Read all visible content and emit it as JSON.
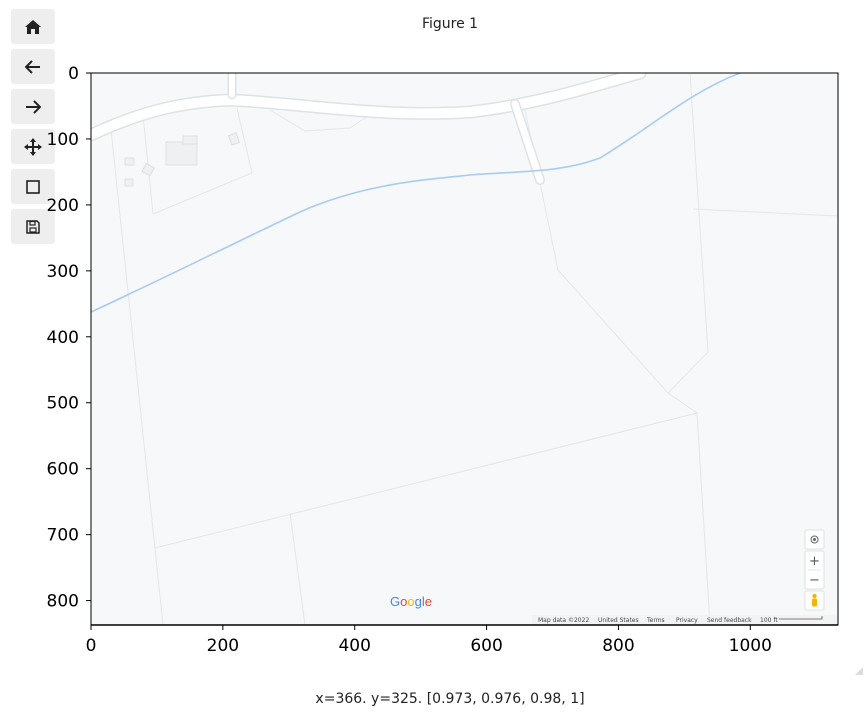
{
  "window": {
    "figure_title": "Figure 1",
    "status_text": "x=366. y=325. [0.973, 0.976, 0.98, 1]"
  },
  "toolbar": {
    "buttons": [
      {
        "name": "home-button",
        "icon": "home-icon"
      },
      {
        "name": "back-button",
        "icon": "arrow-left-icon"
      },
      {
        "name": "forward-button",
        "icon": "arrow-right-icon"
      },
      {
        "name": "pan-button",
        "icon": "move-icon"
      },
      {
        "name": "zoom-button",
        "icon": "square-icon"
      },
      {
        "name": "save-button",
        "icon": "floppy-disk-icon"
      }
    ]
  },
  "chart_data": {
    "type": "image",
    "x_ticks": [
      0,
      200,
      400,
      600,
      800,
      1000
    ],
    "y_ticks": [
      0,
      100,
      200,
      300,
      400,
      500,
      600,
      700,
      800
    ],
    "x_tick_labels": [
      "0",
      "200",
      "400",
      "600",
      "800",
      "1000"
    ],
    "y_tick_labels": [
      "0",
      "100",
      "200",
      "300",
      "400",
      "500",
      "600",
      "700",
      "800"
    ],
    "xlim": [
      0,
      1133
    ],
    "ylim": [
      837,
      0
    ]
  },
  "map": {
    "logo_text": "Google",
    "attribution": {
      "map_data": "Map data ©2022",
      "region": "United States",
      "terms": "Terms",
      "privacy": "Privacy",
      "feedback": "Send feedback",
      "scale": "100 ft"
    },
    "controls": {
      "zoom_in": "+",
      "zoom_out": "−"
    },
    "colors": {
      "background": "#f7f8fa",
      "road": "#ffffff",
      "road_edge": "#e1e3e6",
      "water": "#a8ccf0",
      "parcel": "#e4e6e9"
    }
  }
}
